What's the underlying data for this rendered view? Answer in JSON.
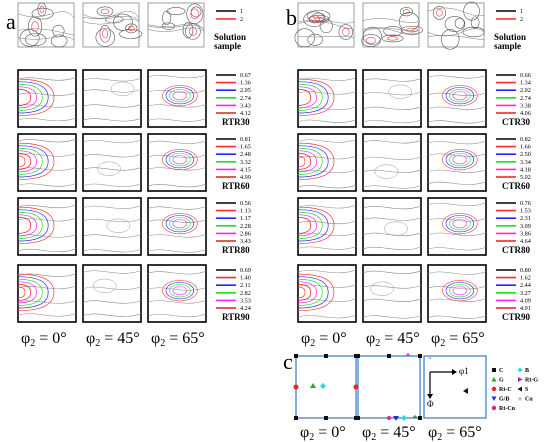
{
  "panel_a": {
    "label": "a",
    "rows": [
      {
        "id": "solution",
        "name": "Solution\nsample",
        "name_lines": [
          "Solution",
          "sample"
        ],
        "legend": [
          "1",
          "2"
        ],
        "colors": [
          "#000000",
          "#ff2a2a"
        ]
      },
      {
        "id": "rtr30",
        "name": "RTR30",
        "legend": [
          "0.67",
          "1.36",
          "2.05",
          "2.74",
          "3.43",
          "4.12"
        ],
        "colors": [
          "#000000",
          "#ff2a2a",
          "#2828ff",
          "#22dd22",
          "#ff22ff",
          "#dd2222"
        ]
      },
      {
        "id": "rtr60",
        "name": "RTR60",
        "legend": [
          "0.81",
          "1.65",
          "2.48",
          "3.32",
          "4.15",
          "4.99"
        ],
        "colors": [
          "#000000",
          "#ff2a2a",
          "#2828ff",
          "#22dd22",
          "#ff22ff",
          "#dd2222"
        ]
      },
      {
        "id": "rtr80",
        "name": "RTR80",
        "legend": [
          "0.56",
          "1.13",
          "1.17",
          "2.28",
          "2.86",
          "3.43"
        ],
        "colors": [
          "#000000",
          "#ff2a2a",
          "#2828ff",
          "#22dd22",
          "#ff22ff",
          "#dd2222"
        ]
      },
      {
        "id": "rtr90",
        "name": "RTR90",
        "legend": [
          "0.69",
          "1.40",
          "2.11",
          "2.82",
          "3.53",
          "4.24"
        ],
        "colors": [
          "#000000",
          "#ff2a2a",
          "#2828ff",
          "#22dd22",
          "#ff22ff",
          "#dd2222"
        ]
      }
    ],
    "phi_labels": [
      "φ2 = 0°",
      "φ2 = 45°",
      "φ2 = 65°"
    ]
  },
  "panel_b": {
    "label": "b",
    "rows": [
      {
        "id": "solution",
        "name_lines": [
          "Solution",
          "sample"
        ],
        "legend": [
          "1",
          "2"
        ],
        "colors": [
          "#000000",
          "#ff2a2a"
        ]
      },
      {
        "id": "ctr30",
        "name": "CTR30",
        "legend": [
          "0.66",
          "1.34",
          "2.02",
          "2.74",
          "3.38",
          "4.06"
        ],
        "colors": [
          "#000000",
          "#ff2a2a",
          "#2828ff",
          "#22dd22",
          "#ff22ff",
          "#dd2222"
        ]
      },
      {
        "id": "ctr60",
        "name": "CTR60",
        "legend": [
          "0.82",
          "1.66",
          "2.50",
          "3.34",
          "4.18",
          "5.02"
        ],
        "colors": [
          "#000000",
          "#ff2a2a",
          "#2828ff",
          "#22dd22",
          "#ff22ff",
          "#dd2222"
        ]
      },
      {
        "id": "ctr80",
        "name": "CTR80",
        "legend": [
          "0.76",
          "1.53",
          "2.31",
          "3.09",
          "3.86",
          "4.64"
        ],
        "colors": [
          "#000000",
          "#ff2a2a",
          "#2828ff",
          "#22dd22",
          "#ff22ff",
          "#dd2222"
        ]
      },
      {
        "id": "ctr90",
        "name": "CTR90",
        "legend": [
          "0.80",
          "1.62",
          "2.44",
          "3.27",
          "4.09",
          "4.91"
        ],
        "colors": [
          "#000000",
          "#ff2a2a",
          "#2828ff",
          "#22dd22",
          "#ff22ff",
          "#dd2222"
        ]
      }
    ],
    "phi_labels": [
      "φ2 = 0°",
      "φ2 = 45°",
      "φ2 = 65°"
    ]
  },
  "panel_c": {
    "label": "c",
    "phi_labels": [
      "φ2 = 0°",
      "φ2 = 45°",
      "φ2 = 65°"
    ],
    "axis_labels": {
      "phi1": "φ1",
      "Phi": "Φ"
    },
    "legend": [
      {
        "name": "C",
        "symbol": "square",
        "color": "#111111"
      },
      {
        "name": "B",
        "symbol": "diamond",
        "color": "#22dddd"
      },
      {
        "name": "G",
        "symbol": "triangle-up",
        "color": "#22aa22"
      },
      {
        "name": "Rt-G",
        "symbol": "triangle-right",
        "color": "#aa22aa"
      },
      {
        "name": "Rt-C",
        "symbol": "circle",
        "color": "#ee2222"
      },
      {
        "name": "S",
        "symbol": "triangle-left",
        "color": "#111111"
      },
      {
        "name": "G/B",
        "symbol": "triangle-down",
        "color": "#2233cc"
      },
      {
        "name": "Cu",
        "symbol": "star",
        "color": "#bbbbbb"
      },
      {
        "name": "Rt-Cu",
        "symbol": "circle",
        "color": "#dd2288"
      }
    ]
  }
}
